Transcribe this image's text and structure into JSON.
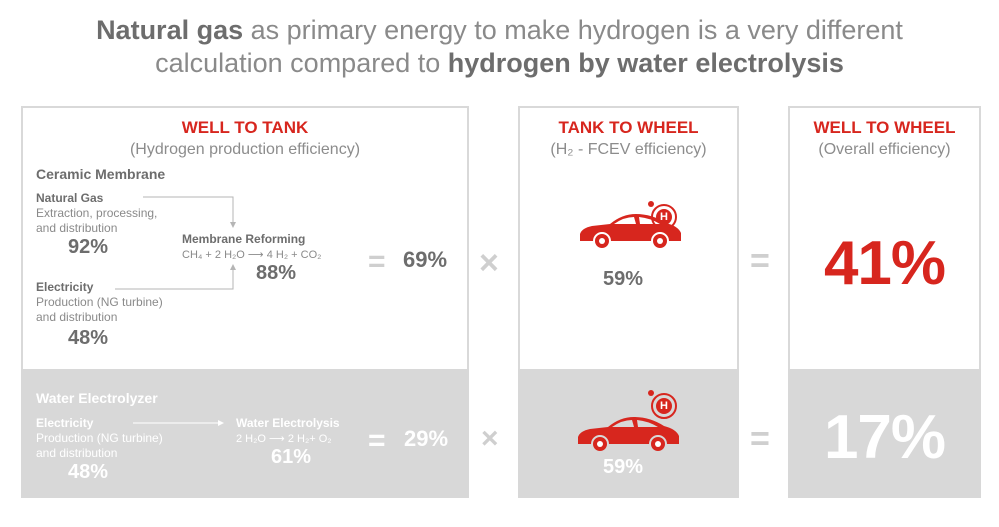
{
  "title": {
    "line1_bold": "Natural gas",
    "line1_rest": " as primary energy to make hydrogen is a very different",
    "line2_rest": "calculation compared to ",
    "line2_bold": "hydrogen by water electrolysis"
  },
  "well_to_tank": {
    "heading": "WELL TO TANK",
    "subheading": "(Hydrogen production efficiency)",
    "ceramic": {
      "title": "Ceramic Membrane",
      "ng_label": "Natural Gas",
      "ng_desc": [
        "Extraction, processing,",
        "and distribution"
      ],
      "ng_pct": "92%",
      "elec_label": "Electricity",
      "elec_desc": [
        "Production (NG turbine)",
        "and distribution"
      ],
      "elec_pct": "48%",
      "process_label": "Membrane Reforming",
      "equation": "CH₄ + 2 H₂O ⟶ 4 H₂ + CO₂",
      "process_pct": "88%",
      "result": "69%"
    },
    "electrolyzer": {
      "title": "Water Electrolyzer",
      "elec_label": "Electricity",
      "elec_desc": [
        "Production (NG turbine)",
        "and distribution"
      ],
      "elec_pct": "48%",
      "process_label": "Water Electrolysis",
      "equation": "2 H₂O ⟶ 2 H₂+ O₂",
      "process_pct": "61%",
      "result": "29%"
    }
  },
  "tank_to_wheel": {
    "heading": "TANK TO WHEEL",
    "subheading": "(H₂ - FCEV efficiency)",
    "top_pct": "59%",
    "bottom_pct": "59%",
    "badge": "H"
  },
  "well_to_wheel": {
    "heading": "WELL TO WHEEL",
    "subheading": "(Overall efficiency)",
    "top_pct": "41%",
    "bottom_pct": "17%"
  },
  "operators": {
    "multiply": "×",
    "equals": "="
  },
  "colors": {
    "accent": "#d7261e",
    "gray_box": "#d8d8d8",
    "dark_text": "#6d6d6d"
  }
}
